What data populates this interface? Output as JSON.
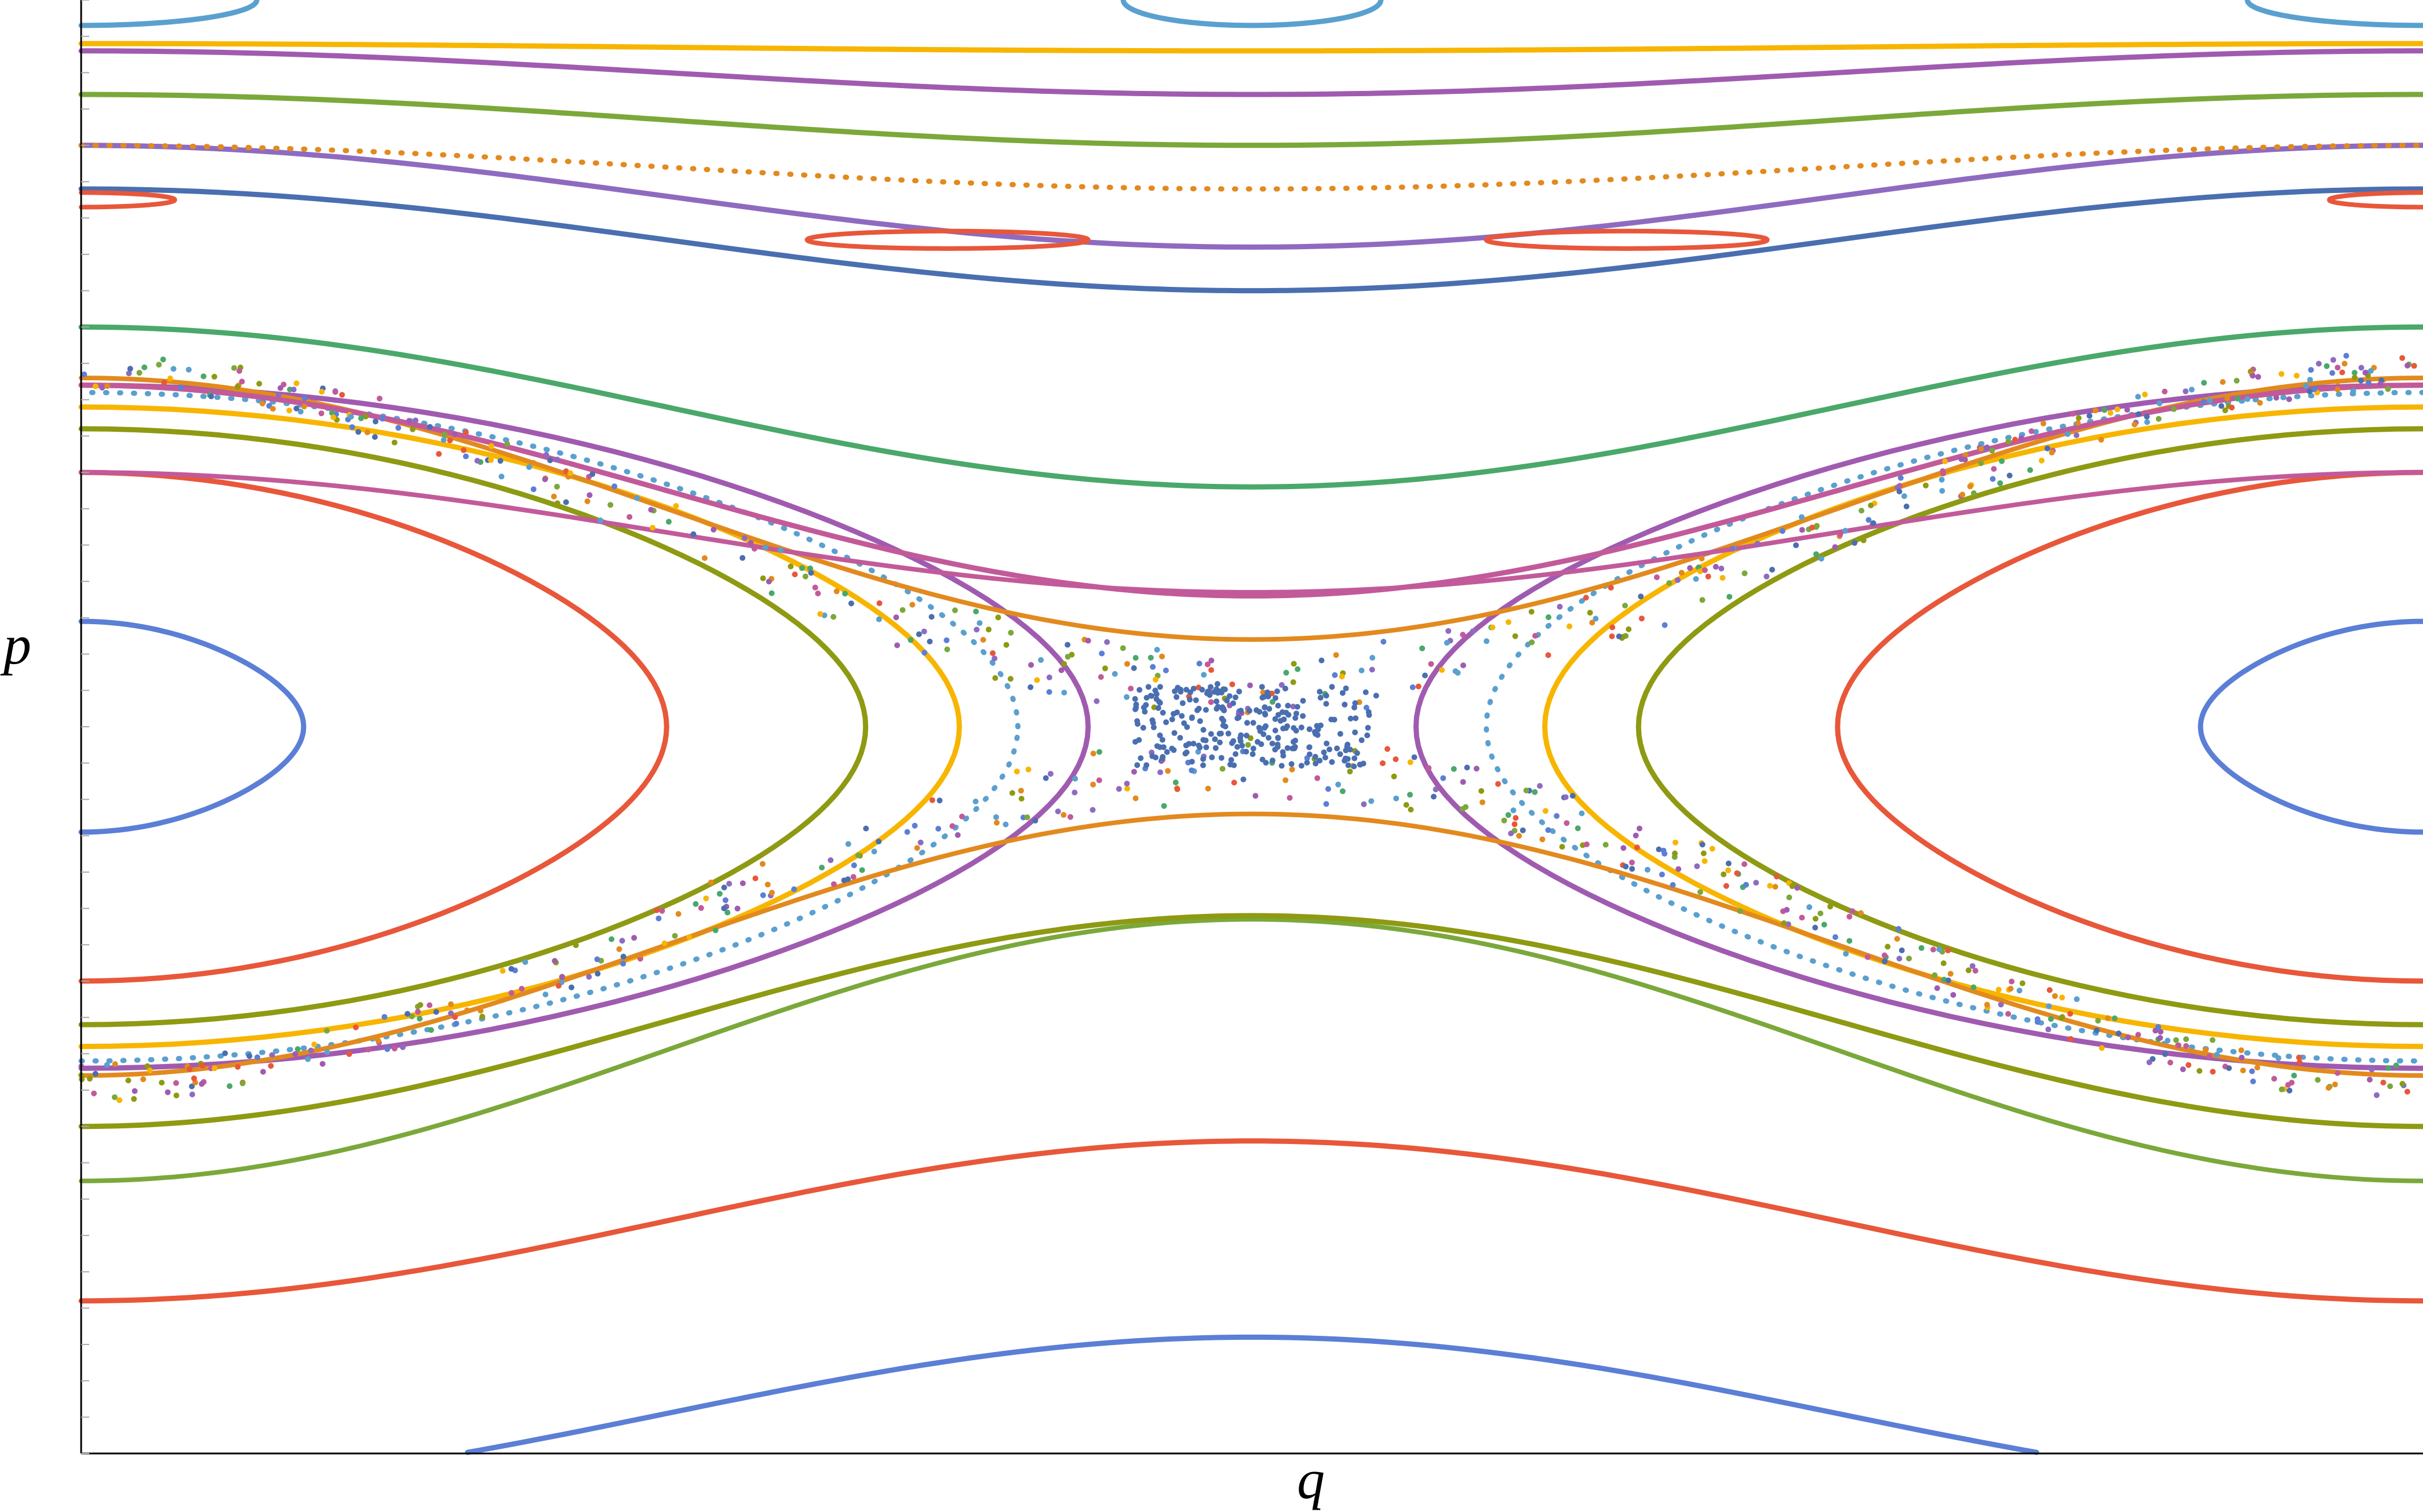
{
  "chart_data": {
    "type": "scatter",
    "title": "",
    "xlabel": "q",
    "ylabel": "p",
    "xlim": [
      0,
      1
    ],
    "ylim": [
      -1,
      1
    ],
    "grid": false,
    "legend": "none",
    "description_kind": "Poincare section (phase portrait of orbits)",
    "palette": [
      "#5b7fd6",
      "#e8573a",
      "#8e9a12",
      "#f7b500",
      "#5aa0cf",
      "#a05bb0",
      "#e28a1e",
      "#4aa86a",
      "#c25a9a",
      "#7ba83a",
      "#4a6fb0",
      "#8e6bc0"
    ],
    "series": [
      {
        "kind": "ellipse",
        "cx": 0.0,
        "cy": 0.0,
        "a": 0.095,
        "b": 0.145,
        "color": "#5b7fd6"
      },
      {
        "kind": "ellipse",
        "cx": 1.0,
        "cy": 0.0,
        "a": 0.095,
        "b": 0.145,
        "color": "#5b7fd6"
      },
      {
        "kind": "ellipse",
        "cx": 0.0,
        "cy": 0.0,
        "a": 0.25,
        "b": 0.35,
        "color": "#e8573a"
      },
      {
        "kind": "ellipse",
        "cx": 1.0,
        "cy": 0.0,
        "a": 0.25,
        "b": 0.35,
        "color": "#e8573a"
      },
      {
        "kind": "ellipse",
        "cx": 0.0,
        "cy": 0.0,
        "a": 0.335,
        "b": 0.41,
        "color": "#8e9a12"
      },
      {
        "kind": "ellipse",
        "cx": 1.0,
        "cy": 0.0,
        "a": 0.335,
        "b": 0.41,
        "color": "#8e9a12"
      },
      {
        "kind": "ellipse",
        "cx": 0.0,
        "cy": 0.0,
        "a": 0.375,
        "b": 0.44,
        "color": "#f7b500"
      },
      {
        "kind": "ellipse",
        "cx": 1.0,
        "cy": 0.0,
        "a": 0.375,
        "b": 0.44,
        "color": "#f7b500"
      },
      {
        "kind": "ellipse",
        "cx": 0.0,
        "cy": 0.0,
        "a": 0.4,
        "b": 0.46,
        "color": "#5aa0cf",
        "dotted": true
      },
      {
        "kind": "ellipse",
        "cx": 1.0,
        "cy": 0.0,
        "a": 0.4,
        "b": 0.46,
        "color": "#5aa0cf",
        "dotted": true
      },
      {
        "kind": "ellipse",
        "cx": 0.0,
        "cy": 0.0,
        "a": 0.43,
        "b": 0.47,
        "color": "#a05bb0"
      },
      {
        "kind": "ellipse",
        "cx": 1.0,
        "cy": 0.0,
        "a": 0.43,
        "b": 0.47,
        "color": "#a05bb0"
      },
      {
        "kind": "wave",
        "y0": 0.12,
        "amp": -0.085,
        "color": "#e28a1e"
      },
      {
        "kind": "wave",
        "y0": 0.185,
        "amp": 0.0,
        "color": "#c25a9a",
        "phase": "top",
        "base": 0.35,
        "amp2": -0.165
      },
      {
        "kind": "wave",
        "y0": -0.12,
        "amp": 0.085,
        "color": "#e28a1e"
      },
      {
        "kind": "wave",
        "y0": -0.265,
        "amp": 0.06,
        "color": "#7ba83a"
      },
      {
        "kind": "curve",
        "mid": 0.18,
        "edge": 0.47,
        "color": "#c25a9a"
      },
      {
        "kind": "curve",
        "mid": 0.33,
        "edge": 0.55,
        "color": "#4aa86a"
      },
      {
        "kind": "curve",
        "mid": 0.6,
        "edge": 0.74,
        "color": "#4a6fb0"
      },
      {
        "kind": "curve",
        "mid": 0.66,
        "edge": 0.8,
        "color": "#8e6bc0"
      },
      {
        "kind": "curve",
        "mid": 0.74,
        "edge": 0.8,
        "color": "#e28a1e",
        "dotted": true
      },
      {
        "kind": "curve",
        "mid": 0.8,
        "edge": 0.87,
        "color": "#7ba83a"
      },
      {
        "kind": "curve",
        "mid": 0.87,
        "edge": 0.93,
        "color": "#a05bb0"
      },
      {
        "kind": "curve",
        "mid": 0.93,
        "edge": 0.94,
        "color": "#f7b500"
      },
      {
        "kind": "curve",
        "mid": -0.26,
        "edge": -0.55,
        "color": "#8e9a12"
      },
      {
        "kind": "curve",
        "mid": -0.57,
        "edge": -0.79,
        "color": "#e8573a"
      },
      {
        "kind": "curve",
        "mid": -0.84,
        "edge": -1.05,
        "color": "#5b7fd6"
      },
      {
        "kind": "island",
        "cx": 0.37,
        "cy": 0.67,
        "a": 0.06,
        "b": 0.012,
        "color": "#e8573a"
      },
      {
        "kind": "island",
        "cx": 0.66,
        "cy": 0.67,
        "a": 0.06,
        "b": 0.012,
        "color": "#e8573a"
      },
      {
        "kind": "island",
        "cx": 0.0,
        "cy": 0.725,
        "a": 0.04,
        "b": 0.01,
        "color": "#e8573a"
      },
      {
        "kind": "island",
        "cx": 1.0,
        "cy": 0.725,
        "a": 0.04,
        "b": 0.01,
        "color": "#e8573a"
      },
      {
        "kind": "ellipse",
        "cx": 0.5,
        "cy": 1.0,
        "a": 0.055,
        "b": 0.035,
        "color": "#5aa0cf"
      },
      {
        "kind": "ellipse",
        "cx": 0.0,
        "cy": 1.0,
        "a": 0.075,
        "b": 0.035,
        "color": "#5aa0cf"
      },
      {
        "kind": "ellipse",
        "cx": 1.0,
        "cy": 1.0,
        "a": 0.075,
        "b": 0.035,
        "color": "#5aa0cf"
      },
      {
        "kind": "chaos",
        "color": "#4a6fb0"
      }
    ]
  },
  "axes": {
    "x_label": "q",
    "y_label": "p"
  }
}
